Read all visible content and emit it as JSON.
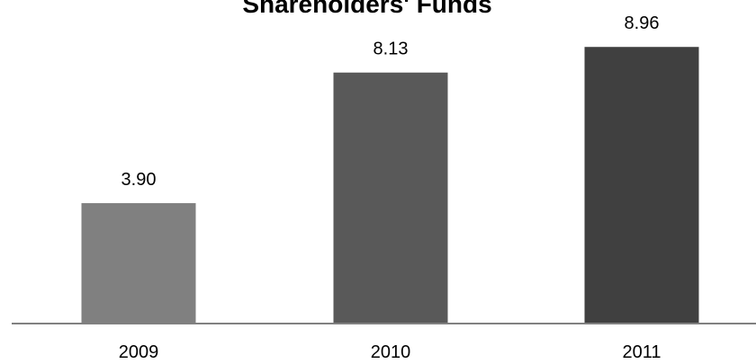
{
  "chart_data": {
    "type": "bar",
    "title": "Shareholders' Funds",
    "categories": [
      "2009",
      "2010",
      "2011"
    ],
    "values": [
      3.9,
      8.13,
      8.96
    ],
    "value_labels": [
      "3.90",
      "8.13",
      "8.96"
    ],
    "xlabel": "",
    "ylabel": "",
    "ylim": [
      0,
      10
    ],
    "grid": false,
    "legend": "none",
    "colors": {
      "bars": [
        "#808080",
        "#595959",
        "#404040"
      ],
      "axis": "#808080",
      "text": "#000000"
    }
  }
}
